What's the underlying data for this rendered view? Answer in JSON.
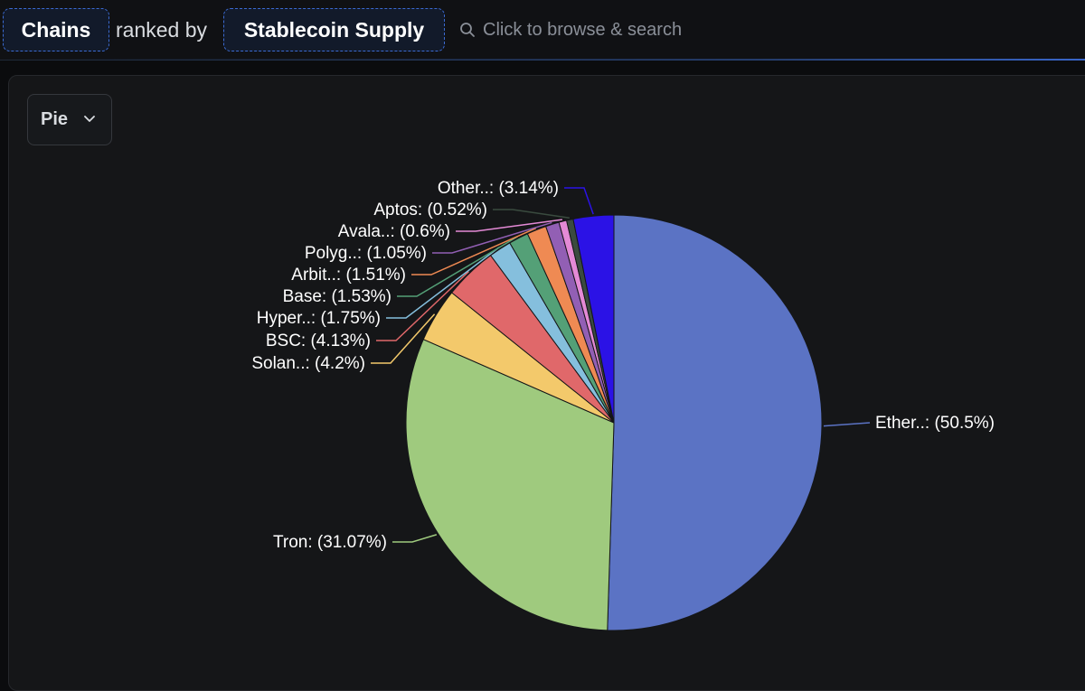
{
  "header": {
    "entity_label": "Chains",
    "ranked_by_label": "ranked by",
    "metric_label": "Stablecoin Supply",
    "search_placeholder": "Click to browse & search"
  },
  "controls": {
    "chart_type_label": "Pie"
  },
  "icons": {
    "search": "search-icon",
    "dropdown": "chevron-down-icon"
  },
  "chart_data": {
    "type": "pie",
    "start_angle_deg": 0,
    "direction": "clockwise",
    "slices": [
      {
        "label": "Ether..: (50.5%)",
        "value": 50.5,
        "color": "#5b73c4"
      },
      {
        "label": "Tron: (31.07%)",
        "value": 31.07,
        "color": "#9fca7e"
      },
      {
        "label": "Solan..: (4.2%)",
        "value": 4.2,
        "color": "#f3c96b"
      },
      {
        "label": "BSC: (4.13%)",
        "value": 4.13,
        "color": "#e0686a"
      },
      {
        "label": "Hyper..: (1.75%)",
        "value": 1.75,
        "color": "#85bfdd"
      },
      {
        "label": "Base: (1.53%)",
        "value": 1.53,
        "color": "#54a077"
      },
      {
        "label": "Arbit..: (1.51%)",
        "value": 1.51,
        "color": "#ef8a53"
      },
      {
        "label": "Polyg..: (1.05%)",
        "value": 1.05,
        "color": "#925fb4"
      },
      {
        "label": "Avala..: (0.6%)",
        "value": 0.6,
        "color": "#e48ad6"
      },
      {
        "label": "Aptos: (0.52%)",
        "value": 0.52,
        "color": "#3a4b3f"
      },
      {
        "label": "Other..: (3.14%)",
        "value": 3.14,
        "color": "#2b12e6"
      }
    ]
  }
}
